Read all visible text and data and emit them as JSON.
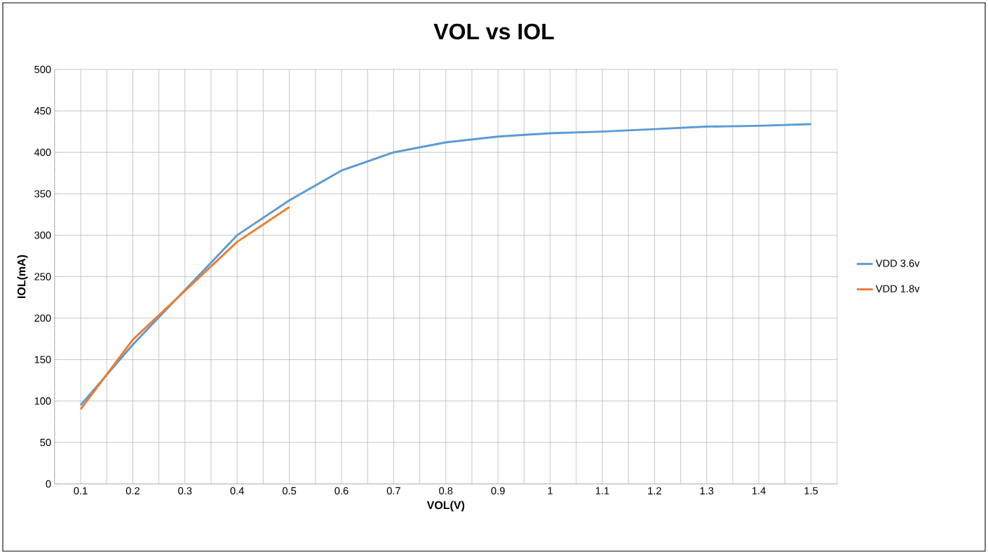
{
  "chart_data": {
    "type": "line",
    "title": "VOL vs IOL",
    "xlabel": "VOL(V)",
    "ylabel": "IOL(mA)",
    "categories": [
      "0.1",
      "0.2",
      "0.3",
      "0.4",
      "0.5",
      "0.6",
      "0.7",
      "0.8",
      "0.9",
      "1",
      "1.1",
      "1.2",
      "1.3",
      "1.4",
      "1.5"
    ],
    "series": [
      {
        "name": "VDD 3.6v",
        "color": "#5b9bd5",
        "values": [
          95,
          168,
          234,
          300,
          342,
          378,
          400,
          412,
          419,
          423,
          425,
          428,
          431,
          432,
          434
        ]
      },
      {
        "name": "VDD 1.8v",
        "color": "#ed7d31",
        "values": [
          90,
          174,
          233,
          292,
          334,
          null,
          null,
          null,
          null,
          null,
          null,
          null,
          null,
          null,
          null
        ]
      }
    ],
    "ylim": [
      0,
      500
    ],
    "yticks": [
      0,
      50,
      100,
      150,
      200,
      250,
      300,
      350,
      400,
      450,
      500
    ],
    "grid": true,
    "legend": "right",
    "marker": "none",
    "line_style": "solid"
  }
}
